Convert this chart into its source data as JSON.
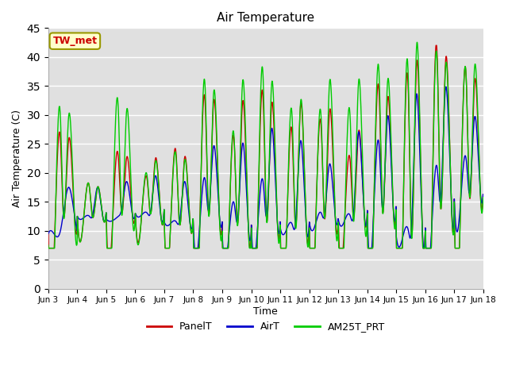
{
  "title": "Air Temperature",
  "xlabel": "Time",
  "ylabel": "Air Temperature (C)",
  "annotation": "TW_met",
  "annotation_color": "#cc0000",
  "annotation_bg": "#ffffcc",
  "annotation_border": "#999900",
  "ylim": [
    0,
    45
  ],
  "yticks": [
    0,
    5,
    10,
    15,
    20,
    25,
    30,
    35,
    40,
    45
  ],
  "background_color": "#e0e0e0",
  "grid_color": "#ffffff",
  "line_colors": {
    "PanelT": "#cc0000",
    "AirT": "#0000cc",
    "AM25T_PRT": "#00cc00"
  },
  "legend_entries": [
    "PanelT",
    "AirT",
    "AM25T_PRT"
  ],
  "x_tick_labels": [
    "Jun 3",
    "Jun 4",
    "Jun 5",
    "Jun 6",
    "Jun 7",
    "Jun 8",
    "Jun 9",
    "Jun 10",
    "Jun 11",
    "Jun 12",
    "Jun 13",
    "Jun 14",
    "Jun 15",
    "Jun 16",
    "Jun 17",
    "Jun 18"
  ],
  "n_days": 15,
  "points_per_day": 144,
  "panel_peaks": [
    25.5,
    17.5,
    22.5,
    18.5,
    22.5,
    30.5,
    32.0,
    31.5,
    32.0,
    30.5,
    30.0,
    27.0,
    32.5,
    33.5,
    38.5,
    39.0,
    35.5,
    38.0
  ],
  "air_peaks": [
    10.0,
    17.5,
    12.5,
    18.5,
    13.5,
    24.0,
    25.0,
    27.5,
    25.0,
    30.5,
    21.5,
    27.0,
    29.5,
    33.5,
    34.5,
    35.0,
    29.0,
    29.5
  ],
  "am25_peaks": [
    29.5,
    17.5,
    30.5,
    19.0,
    30.5,
    33.5,
    35.5,
    35.0,
    32.0,
    35.5,
    28.5,
    35.5,
    35.5,
    41.5,
    38.5,
    38.0,
    35.5,
    38.0
  ]
}
